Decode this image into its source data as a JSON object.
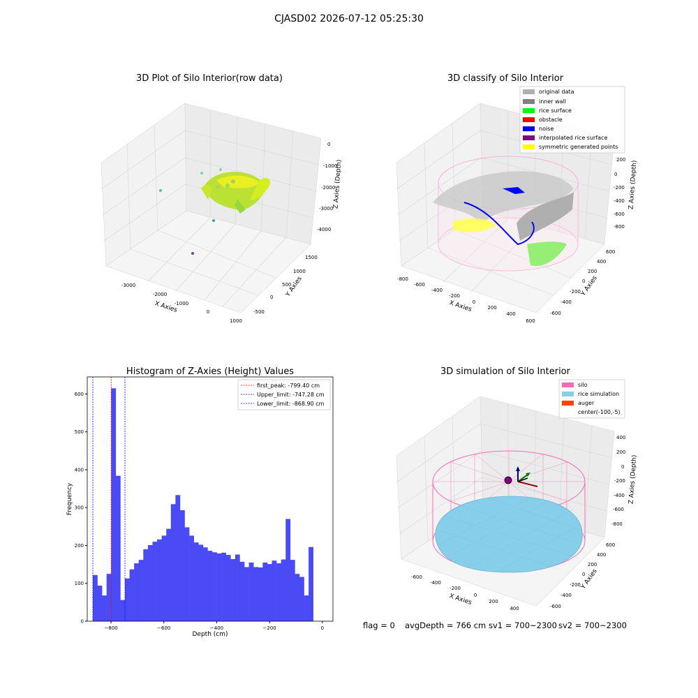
{
  "suptitle": "CJASD02 2026-07-12 05:25:30",
  "colors": {
    "hist_bar": "#4b4bf5",
    "peak_line": "#ff0000",
    "limit_line": "#0000ff",
    "silo": "#ff69b4",
    "rice_sim": "#87ceeb",
    "auger": "#ff4500",
    "wall": "#808080",
    "rice_surface": "#00ff00",
    "noise": "#0000ff",
    "sym": "#ffff00",
    "interp": "#800080",
    "original": "#b0b0b0",
    "obstacle": "#ff0000"
  },
  "footer": {
    "flag": "flag = 0",
    "avg_depth": "avgDepth = 766 cm",
    "sv1": "sv1 = 700~2300",
    "sv2": "sv2 = 700~2300"
  },
  "chart_data": [
    {
      "type": "scatter",
      "title": "3D Plot of Silo Interior(row data)",
      "xlabel": "X Axies",
      "ylabel": "Y Axies",
      "zlabel": "Z Axies (Depth)",
      "x_ticks": [
        "-3000",
        "-2000",
        "-1000",
        "0",
        "1000"
      ],
      "y_ticks": [
        "-500",
        "0",
        "500",
        "1000",
        "1500"
      ],
      "z_ticks": [
        "0",
        "-1000",
        "-2000",
        "-3000",
        "-4000"
      ]
    },
    {
      "type": "scatter",
      "title": "3D classify of Silo Interior",
      "xlabel": "X Axies",
      "ylabel": "Y Axies",
      "zlabel": "Z Axies (Depth)",
      "x_ticks": [
        "-800",
        "-600",
        "-400",
        "-200",
        "0",
        "200",
        "400",
        "600"
      ],
      "y_ticks": [
        "-600",
        "-400",
        "-200",
        "0",
        "200",
        "400",
        "600"
      ],
      "z_ticks": [
        "200",
        "0",
        "-200",
        "-400",
        "-600",
        "-800"
      ],
      "legend": [
        "original data",
        "inner wall",
        "rice surface",
        "obstacle",
        "noise",
        "interpolated rice surface",
        "symmetric generated points"
      ],
      "legend_colors": [
        "#b0b0b0",
        "#808080",
        "#00ff00",
        "#ff0000",
        "#0000ff",
        "#800080",
        "#ffff00"
      ]
    },
    {
      "type": "bar",
      "title": "Histogram of Z-Axies (Height) Values",
      "xlabel": "Depth (cm)",
      "ylabel": "Frequency",
      "xlim": [
        -890,
        40
      ],
      "ylim": [
        0,
        645
      ],
      "x_ticks": [
        -800,
        -600,
        -400,
        -200,
        0
      ],
      "y_ticks": [
        0,
        100,
        200,
        300,
        400,
        500,
        600
      ],
      "bin_start": -869,
      "bin_width": 17.38,
      "counts": [
        122,
        94,
        68,
        125,
        615,
        384,
        56,
        113,
        137,
        153,
        162,
        190,
        201,
        210,
        216,
        226,
        244,
        309,
        333,
        293,
        248,
        226,
        208,
        202,
        195,
        186,
        182,
        179,
        181,
        175,
        164,
        176,
        157,
        143,
        155,
        143,
        142,
        155,
        151,
        160,
        153,
        163,
        270,
        162,
        125,
        117,
        68,
        196
      ],
      "vlines": [
        {
          "value": -799.4,
          "color": "#ff0000",
          "label": "first_peak: -799.40 cm"
        },
        {
          "value": -747.28,
          "color": "#0000ff",
          "label": "Upper_limit: -747.28 cm"
        },
        {
          "value": -868.9,
          "color": "#0000ff",
          "label": "Lower_limit: -868.90 cm"
        }
      ],
      "legend_position": "top-right"
    },
    {
      "type": "scatter",
      "title": "3D simulation of Silo Interior",
      "xlabel": "X Axies",
      "ylabel": "Y Axies",
      "zlabel": "Z Axies (Depth)",
      "x_ticks": [
        "-600",
        "-400",
        "-200",
        "0",
        "200",
        "400"
      ],
      "y_ticks": [
        "-600",
        "-400",
        "-200",
        "0",
        "200",
        "400",
        "600"
      ],
      "z_ticks": [
        "400",
        "200",
        "0",
        "-200",
        "-400",
        "-600",
        "-800"
      ],
      "legend": [
        "silo",
        "rice simulation",
        "auger",
        "center(-100,-5)"
      ],
      "legend_colors": [
        "#ff69b4",
        "#87ceeb",
        "#ff4500",
        "none"
      ]
    }
  ]
}
